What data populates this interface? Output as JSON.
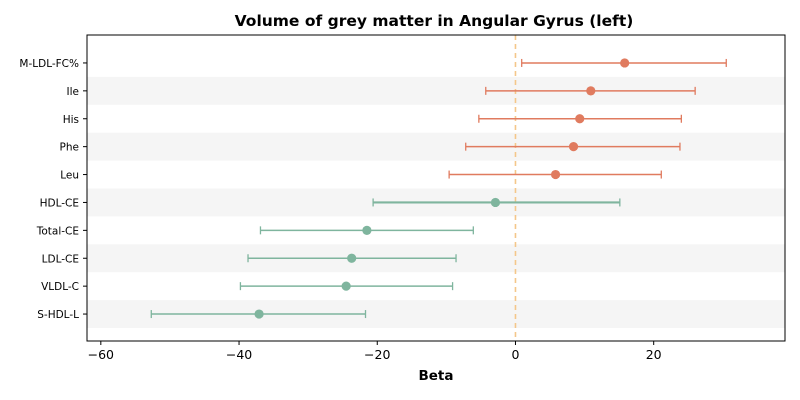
{
  "chart_data": {
    "type": "forest",
    "title": "Volume of grey matter in Angular Gyrus (left)",
    "xlabel": "Beta",
    "xlim": [
      -62,
      39
    ],
    "xticks": [
      -60,
      -40,
      -20,
      0,
      20
    ],
    "xtick_labels": [
      "−60",
      "−40",
      "−20",
      "0",
      "20"
    ],
    "reference_line": 0,
    "colors": {
      "positive": "#e07b5f",
      "negative": "#7fb59e",
      "reference": "#f4c78a",
      "band": "#f5f5f5"
    },
    "rows": [
      {
        "label": "M-LDL-FC%",
        "estimate": 15.8,
        "lower": 0.9,
        "upper": 30.5,
        "group": "positive"
      },
      {
        "label": "Ile",
        "estimate": 10.9,
        "lower": -4.3,
        "upper": 26.0,
        "group": "positive"
      },
      {
        "label": "His",
        "estimate": 9.3,
        "lower": -5.3,
        "upper": 24.0,
        "group": "positive"
      },
      {
        "label": "Phe",
        "estimate": 8.4,
        "lower": -7.2,
        "upper": 23.8,
        "group": "positive"
      },
      {
        "label": "Leu",
        "estimate": 5.8,
        "lower": -9.6,
        "upper": 21.1,
        "group": "positive"
      },
      {
        "label": "HDL-CE",
        "estimate": -2.9,
        "lower": -20.6,
        "upper": 15.1,
        "group": "negative"
      },
      {
        "label": "Total-CE",
        "estimate": -21.5,
        "lower": -36.9,
        "upper": -6.1,
        "group": "negative"
      },
      {
        "label": "LDL-CE",
        "estimate": -23.7,
        "lower": -38.7,
        "upper": -8.6,
        "group": "negative"
      },
      {
        "label": "VLDL-C",
        "estimate": -24.5,
        "lower": -39.8,
        "upper": -9.1,
        "group": "negative"
      },
      {
        "label": "S-HDL-L",
        "estimate": -37.1,
        "lower": -52.7,
        "upper": -21.7,
        "group": "negative"
      }
    ]
  }
}
